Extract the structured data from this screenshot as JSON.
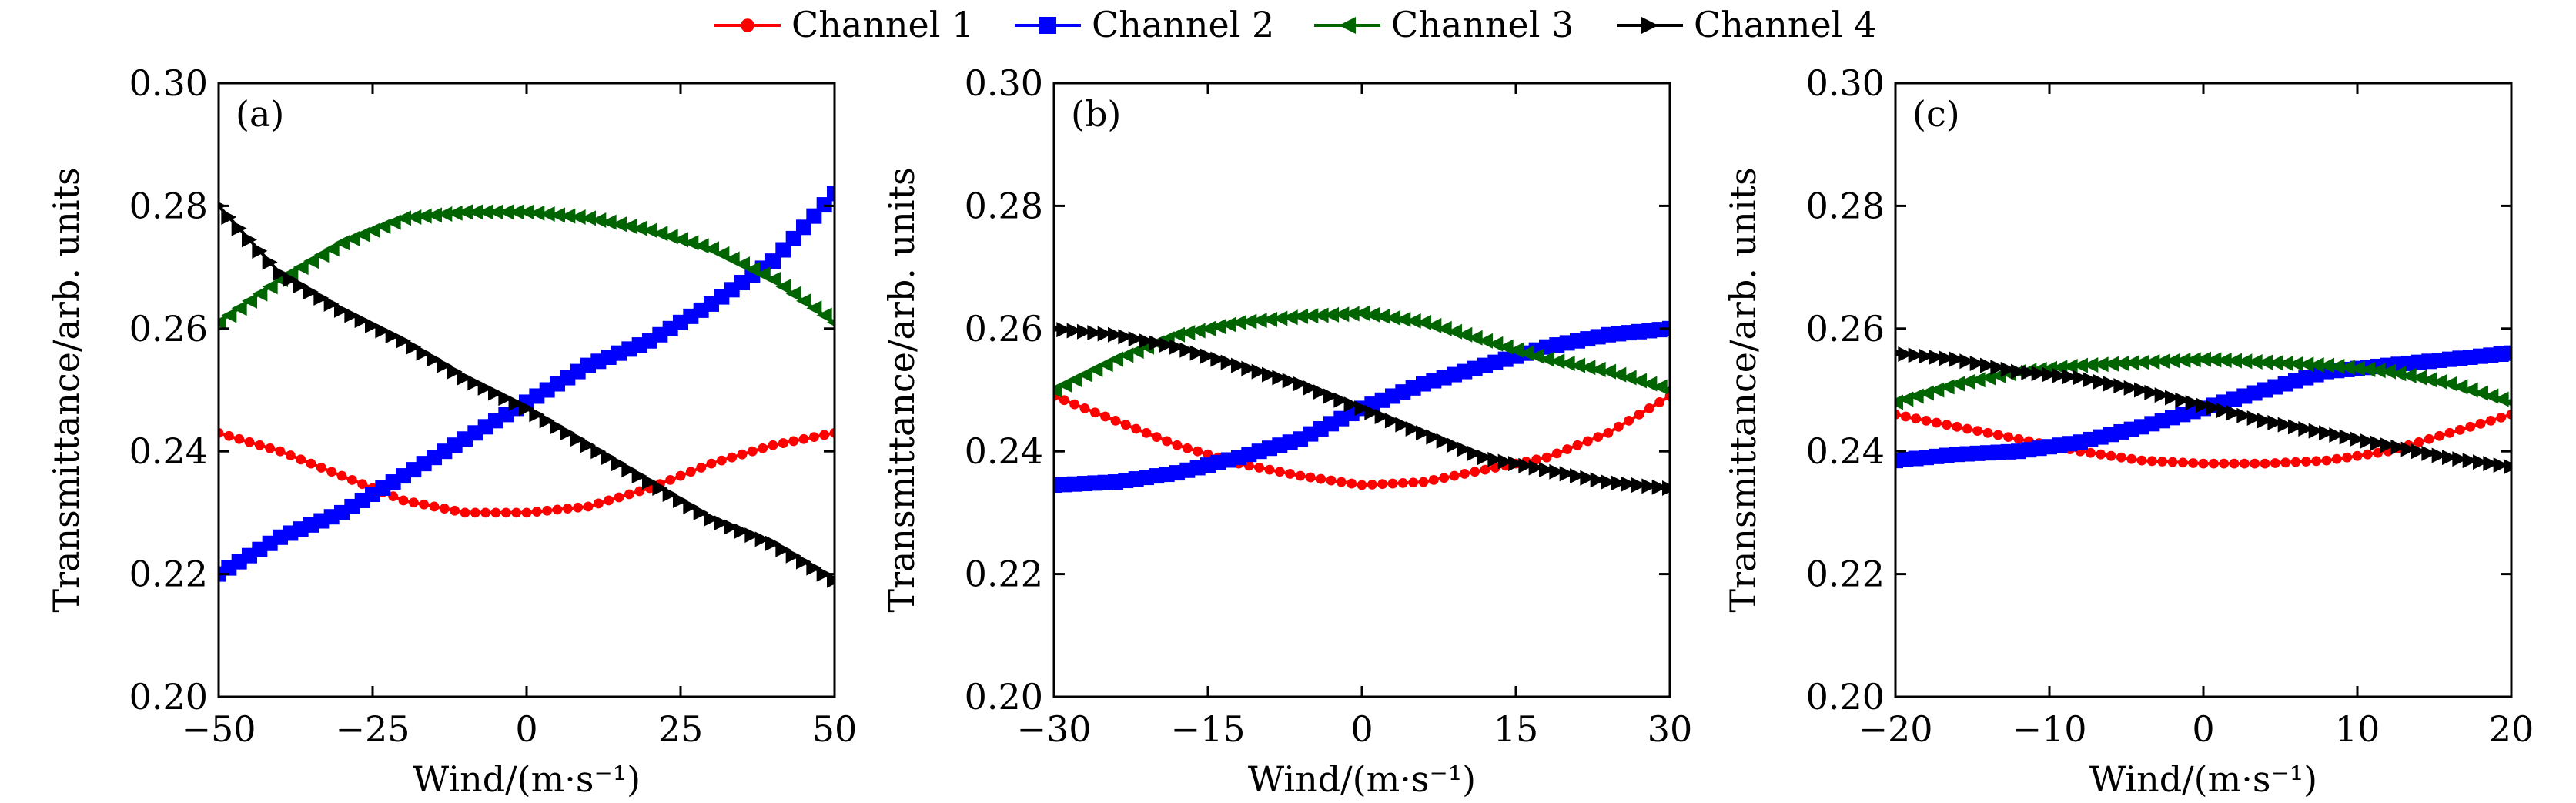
{
  "legend": [
    {
      "name": "Channel 1",
      "color": "#ff0000",
      "marker": "circle"
    },
    {
      "name": "Channel 2",
      "color": "#0000ff",
      "marker": "square"
    },
    {
      "name": "Channel 3",
      "color": "#006400",
      "marker": "triangle-left"
    },
    {
      "name": "Channel 4",
      "color": "#000000",
      "marker": "triangle-right"
    }
  ],
  "chart_data": [
    {
      "type": "line",
      "panel_label": "(a)",
      "xlabel": "Wind/(m·s⁻¹)",
      "ylabel": "Transmittance/arb. units",
      "xlim": [
        -50,
        50
      ],
      "ylim": [
        0.2,
        0.3
      ],
      "xticks": [
        -50,
        -25,
        0,
        25,
        50
      ],
      "xtick_labels": [
        "−50",
        "−25",
        "0",
        "25",
        "50"
      ],
      "yticks": [
        0.2,
        0.22,
        0.24,
        0.26,
        0.28,
        0.3
      ],
      "ytick_labels": [
        "0.20",
        "0.22",
        "0.24",
        "0.26",
        "0.28",
        "0.30"
      ],
      "x": [
        -50,
        -40,
        -30,
        -20,
        -10,
        0,
        10,
        20,
        30,
        40,
        50
      ],
      "series": [
        {
          "name": "Channel 1",
          "values": [
            0.243,
            0.24,
            0.236,
            0.232,
            0.23,
            0.23,
            0.231,
            0.234,
            0.238,
            0.241,
            0.243
          ]
        },
        {
          "name": "Channel 2",
          "values": [
            0.22,
            0.226,
            0.23,
            0.236,
            0.242,
            0.248,
            0.254,
            0.258,
            0.264,
            0.271,
            0.282
          ]
        },
        {
          "name": "Channel 3",
          "values": [
            0.261,
            0.268,
            0.274,
            0.278,
            0.279,
            0.279,
            0.278,
            0.276,
            0.273,
            0.268,
            0.261
          ]
        },
        {
          "name": "Channel 4",
          "values": [
            0.28,
            0.269,
            0.263,
            0.258,
            0.252,
            0.247,
            0.241,
            0.235,
            0.229,
            0.225,
            0.219
          ]
        }
      ]
    },
    {
      "type": "line",
      "panel_label": "(b)",
      "xlabel": "Wind/(m·s⁻¹)",
      "ylabel": "Transmittance/arb. units",
      "xlim": [
        -30,
        30
      ],
      "ylim": [
        0.2,
        0.3
      ],
      "xticks": [
        -30,
        -15,
        0,
        15,
        30
      ],
      "xtick_labels": [
        "−30",
        "−15",
        "0",
        "15",
        "30"
      ],
      "yticks": [
        0.2,
        0.22,
        0.24,
        0.26,
        0.28,
        0.3
      ],
      "ytick_labels": [
        "0.20",
        "0.22",
        "0.24",
        "0.26",
        "0.28",
        "0.30"
      ],
      "x": [
        -30,
        -24,
        -18,
        -12,
        -6,
        0,
        6,
        12,
        18,
        24,
        30
      ],
      "series": [
        {
          "name": "Channel 1",
          "values": [
            0.249,
            0.245,
            0.241,
            0.238,
            0.236,
            0.2345,
            0.235,
            0.237,
            0.239,
            0.243,
            0.249
          ]
        },
        {
          "name": "Channel 2",
          "values": [
            0.2345,
            0.235,
            0.2365,
            0.239,
            0.242,
            0.247,
            0.251,
            0.254,
            0.257,
            0.259,
            0.26
          ]
        },
        {
          "name": "Channel 3",
          "values": [
            0.25,
            0.255,
            0.259,
            0.261,
            0.262,
            0.2625,
            0.261,
            0.258,
            0.255,
            0.253,
            0.25
          ]
        },
        {
          "name": "Channel 4",
          "values": [
            0.26,
            0.259,
            0.257,
            0.254,
            0.251,
            0.247,
            0.243,
            0.239,
            0.237,
            0.235,
            0.234
          ]
        }
      ]
    },
    {
      "type": "line",
      "panel_label": "(c)",
      "xlabel": "Wind/(m·s⁻¹)",
      "ylabel": "Transmittance/arb. units",
      "xlim": [
        -20,
        20
      ],
      "ylim": [
        0.2,
        0.3
      ],
      "xticks": [
        -20,
        -10,
        0,
        10,
        20
      ],
      "xtick_labels": [
        "−20",
        "−10",
        "0",
        "10",
        "20"
      ],
      "yticks": [
        0.2,
        0.22,
        0.24,
        0.26,
        0.28,
        0.3
      ],
      "ytick_labels": [
        "0.20",
        "0.22",
        "0.24",
        "0.26",
        "0.28",
        "0.30"
      ],
      "x": [
        -20,
        -16,
        -12,
        -8,
        -4,
        0,
        4,
        8,
        12,
        16,
        20
      ],
      "series": [
        {
          "name": "Channel 1",
          "values": [
            0.246,
            0.244,
            0.242,
            0.24,
            0.2385,
            0.238,
            0.238,
            0.2385,
            0.24,
            0.243,
            0.246
          ]
        },
        {
          "name": "Channel 2",
          "values": [
            0.2385,
            0.2395,
            0.24,
            0.2415,
            0.244,
            0.247,
            0.25,
            0.253,
            0.254,
            0.255,
            0.256
          ]
        },
        {
          "name": "Channel 3",
          "values": [
            0.248,
            0.251,
            0.253,
            0.254,
            0.2545,
            0.255,
            0.2545,
            0.254,
            0.253,
            0.251,
            0.248
          ]
        },
        {
          "name": "Channel 4",
          "values": [
            0.256,
            0.255,
            0.253,
            0.252,
            0.25,
            0.2475,
            0.245,
            0.243,
            0.241,
            0.239,
            0.2375
          ]
        }
      ]
    }
  ]
}
